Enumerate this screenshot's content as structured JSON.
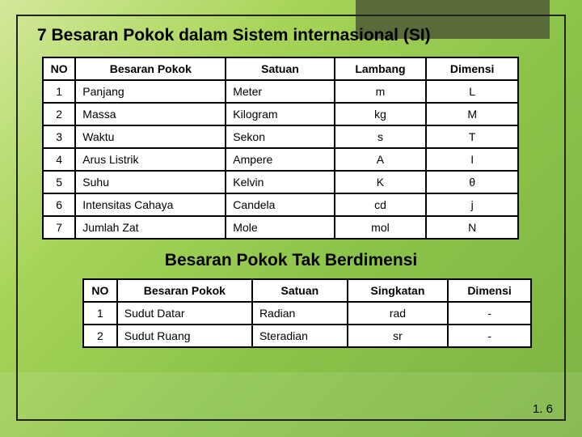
{
  "title": "7 Besaran Pokok dalam Sistem internasional (SI)",
  "subtitle": "Besaran Pokok Tak Berdimensi",
  "page_number": "1. 6",
  "table1": {
    "columns": [
      "NO",
      "Besaran Pokok",
      "Satuan",
      "Lambang",
      "Dimensi"
    ],
    "rows": [
      [
        "1",
        "Panjang",
        "Meter",
        "m",
        "L"
      ],
      [
        "2",
        "Massa",
        "Kilogram",
        "kg",
        "M"
      ],
      [
        "3",
        "Waktu",
        "Sekon",
        "s",
        "T"
      ],
      [
        "4",
        "Arus Listrik",
        "Ampere",
        "A",
        "I"
      ],
      [
        "5",
        "Suhu",
        "Kelvin",
        "K",
        "θ"
      ],
      [
        "6",
        "Intensitas Cahaya",
        "Candela",
        "cd",
        "j"
      ],
      [
        "7",
        "Jumlah Zat",
        "Mole",
        "mol",
        "N"
      ]
    ],
    "col_widths": [
      "38px",
      "180px",
      "130px",
      "110px",
      "110px"
    ],
    "col_align": [
      "left",
      "left",
      "left",
      "center",
      "center"
    ]
  },
  "table2": {
    "columns": [
      "NO",
      "Besaran Pokok",
      "Satuan",
      "Singkatan",
      "Dimensi"
    ],
    "rows": [
      [
        "1",
        "Sudut Datar",
        "Radian",
        "rad",
        "-"
      ],
      [
        "2",
        "Sudut Ruang",
        "Steradian",
        "sr",
        "-"
      ]
    ],
    "col_widths": [
      "34px",
      "156px",
      "110px",
      "116px",
      "96px"
    ],
    "col_align": [
      "left",
      "left",
      "left",
      "center",
      "center"
    ]
  },
  "colors": {
    "bg_gradient_start": "#d4e89a",
    "bg_gradient_end": "#7cb342",
    "corner_box": "#5a6b3a",
    "border": "#000000",
    "table_bg": "#ffffff",
    "text": "#000000"
  }
}
